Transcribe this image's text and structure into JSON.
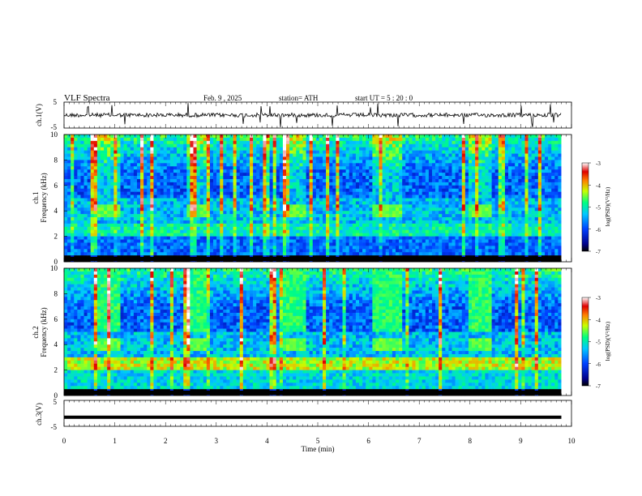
{
  "header": {
    "title": "VLF  Spectra",
    "date": "Feb. 9  , 2025",
    "station": "station= ATH",
    "start": "start  UT  =    5  : 20 : 0"
  },
  "chart_data": [
    {
      "type": "line",
      "panel": "ch1_waveform",
      "ylabel": "ch.1(V)",
      "yticks": [
        "5",
        "-5"
      ],
      "ylim": [
        -5,
        5
      ],
      "description_values": "noisy waveform near 0 V with sparse spikes"
    },
    {
      "type": "heatmap",
      "panel": "ch1_spectrogram",
      "ylabel_top": "ch.1",
      "ylabel": "Frequency  (kHz)",
      "yticks": [
        "10",
        "8",
        "6",
        "4",
        "2",
        "0"
      ],
      "ylim": [
        0,
        10
      ],
      "xlim": [
        0,
        10
      ],
      "colorbar": {
        "label": "log(PSD)(V²/Hz)",
        "ticks": [
          "-3",
          "-4",
          "-5",
          "-6",
          "-7"
        ],
        "range": [
          -7,
          -3
        ]
      },
      "bursts_min": [
        [
          0.65,
          1.1
        ],
        [
          2.4,
          2.8
        ],
        [
          4.3,
          4.8
        ],
        [
          6.1,
          6.65
        ],
        [
          8.0,
          8.4
        ]
      ],
      "burst_band_khz": [
        3.6,
        4.4
      ]
    },
    {
      "type": "heatmap",
      "panel": "ch2_spectrogram",
      "ylabel_top": "ch.2",
      "ylabel": "Frequency  (kHz)",
      "yticks": [
        "10",
        "8",
        "6",
        "4",
        "2",
        "0"
      ],
      "ylim": [
        0,
        10
      ],
      "xlim": [
        0,
        10
      ],
      "colorbar": {
        "label": "log(PSD)(V²/Hz)",
        "ticks": [
          "-3",
          "-4",
          "-5",
          "-6",
          "-7"
        ],
        "range": [
          -7,
          -3
        ]
      },
      "bursts_min": [
        [
          0.65,
          1.1
        ],
        [
          2.4,
          2.8
        ],
        [
          4.3,
          4.8
        ],
        [
          6.1,
          6.65
        ],
        [
          8.0,
          8.4
        ]
      ],
      "burst_band_khz": [
        3.6,
        4.4
      ]
    },
    {
      "type": "line",
      "panel": "ch3_waveform",
      "ylabel": "ch.3(V)",
      "yticks": [
        "5",
        "-5"
      ],
      "ylim": [
        -5,
        5
      ],
      "xlabel": "Time  (min)",
      "xticks": [
        "0",
        "1",
        "2",
        "3",
        "4",
        "5",
        "6",
        "7",
        "8",
        "9",
        "10"
      ],
      "xlim": [
        0,
        10
      ],
      "level": -1.5
    }
  ]
}
